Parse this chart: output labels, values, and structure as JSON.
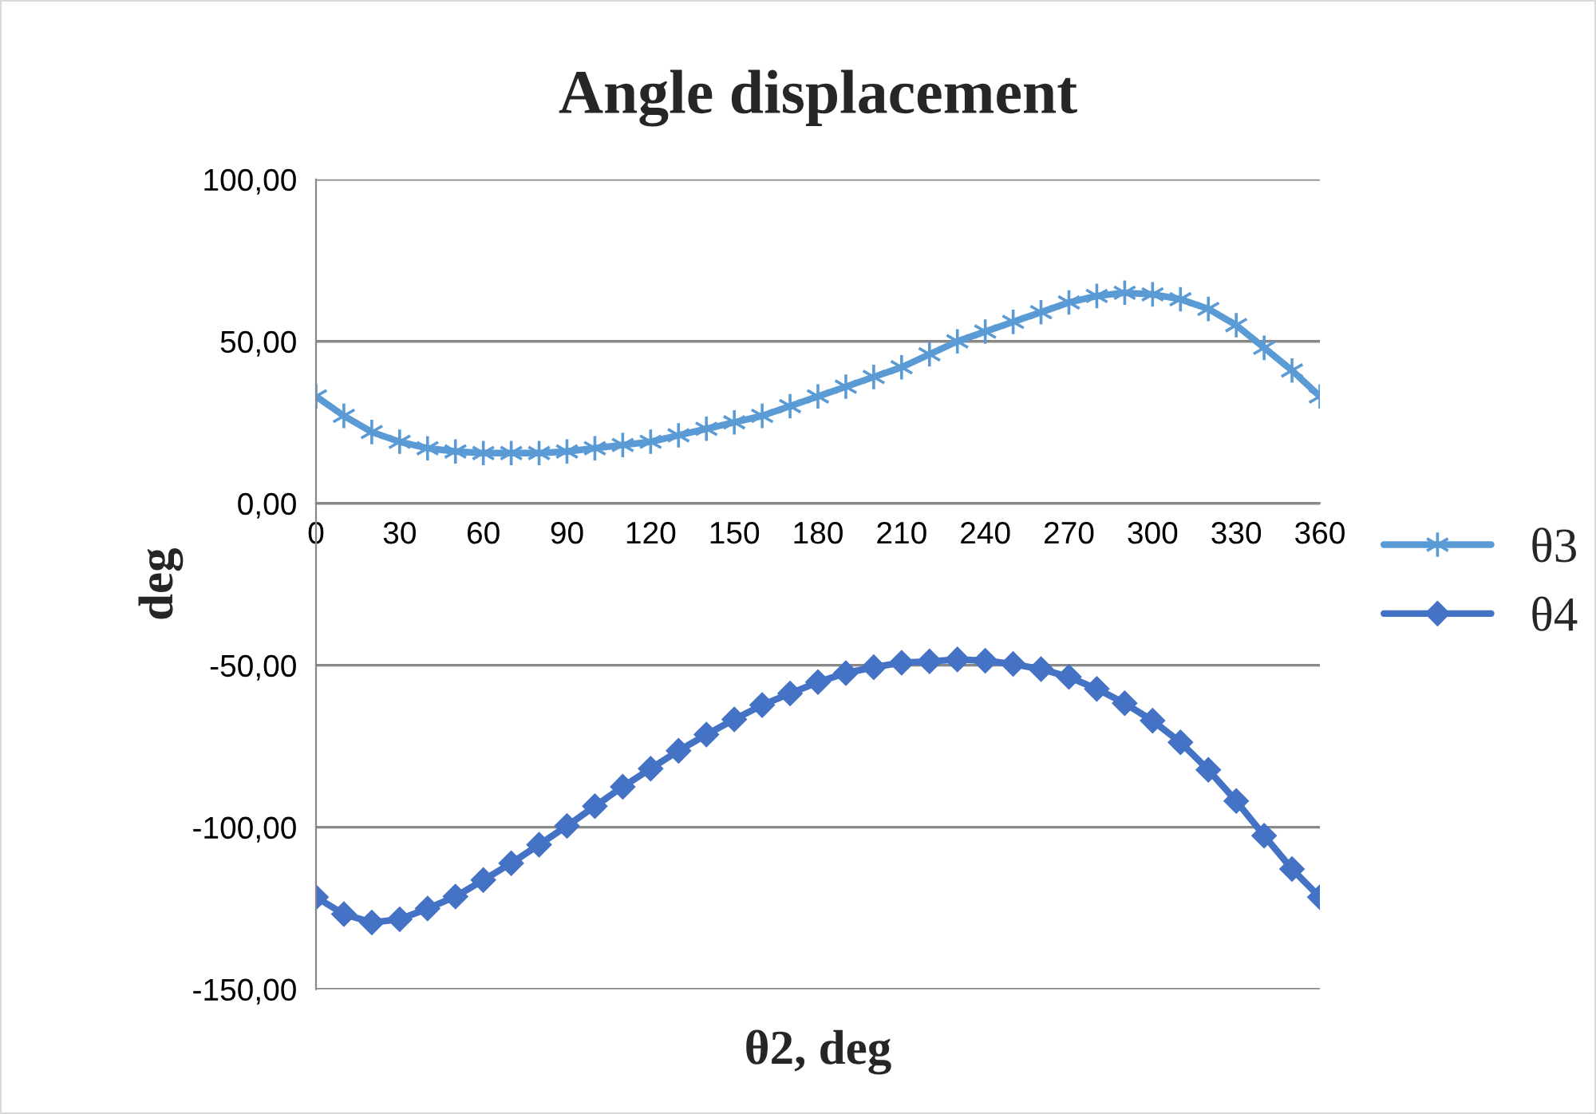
{
  "chart_data": {
    "type": "line",
    "title": "Angle displacement",
    "xlabel": "θ2, deg",
    "ylabel": "deg",
    "x": [
      0,
      10,
      20,
      30,
      40,
      50,
      60,
      70,
      80,
      90,
      100,
      110,
      120,
      130,
      140,
      150,
      160,
      170,
      180,
      190,
      200,
      210,
      220,
      230,
      240,
      250,
      260,
      270,
      280,
      290,
      300,
      310,
      320,
      330,
      340,
      350,
      360
    ],
    "series": [
      {
        "name": "θ3",
        "color": "#5b9bd5",
        "marker": "cross",
        "values": [
          33,
          27,
          22,
          19,
          17,
          16,
          15.5,
          15.5,
          15.5,
          16,
          17,
          18,
          19,
          21,
          23,
          25,
          27,
          30,
          33,
          36,
          39,
          42,
          46,
          50,
          53,
          56,
          59,
          62,
          64,
          65,
          64.5,
          63,
          60,
          55,
          48,
          41,
          33
        ]
      },
      {
        "name": "θ4",
        "color": "#4472c4",
        "marker": "diamond",
        "values": [
          -121.6,
          -126.8,
          -129.4,
          -128.4,
          -125.1,
          -121.4,
          -116.3,
          -111.1,
          -105.4,
          -99.6,
          -93.5,
          -87.5,
          -81.9,
          -76.4,
          -71.4,
          -66.7,
          -62.3,
          -58.7,
          -55.2,
          -52.4,
          -50.6,
          -49.2,
          -48.8,
          -48.2,
          -48.6,
          -49.6,
          -51.2,
          -53.6,
          -57.3,
          -61.7,
          -67.1,
          -73.8,
          -82.3,
          -91.9,
          -102.6,
          -112.9,
          -121.6
        ]
      }
    ],
    "xlim": [
      0,
      360
    ],
    "xticks": [
      0,
      30,
      60,
      90,
      120,
      150,
      180,
      210,
      240,
      270,
      300,
      330,
      360
    ],
    "ylim": [
      -150,
      100
    ],
    "yticks": [
      {
        "value": -150,
        "label": "-150,00"
      },
      {
        "value": -100,
        "label": "-100,00"
      },
      {
        "value": -50,
        "label": "-50,00"
      },
      {
        "value": 0,
        "label": "0,00"
      },
      {
        "value": 50,
        "label": "50,00"
      },
      {
        "value": 100,
        "label": "100,00"
      }
    ],
    "grid": "y",
    "legend": "right",
    "line_style": "solid"
  }
}
